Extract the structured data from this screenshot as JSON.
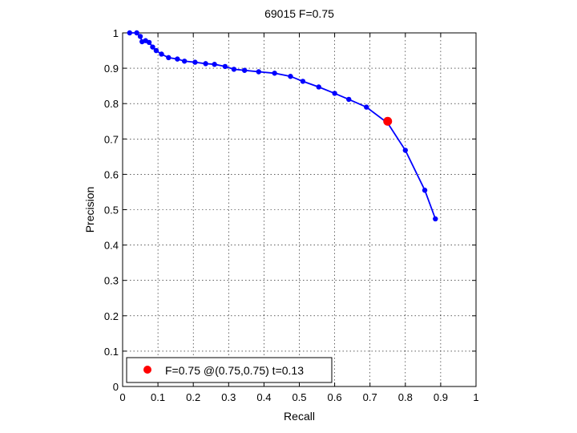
{
  "chart_data": {
    "type": "line",
    "title": "69015 F=0.75",
    "xlabel": "Recall",
    "ylabel": "Precision",
    "xlim": [
      0,
      1
    ],
    "ylim": [
      0,
      1
    ],
    "grid": true,
    "xticks": [
      "0",
      "0.1",
      "0.2",
      "0.3",
      "0.4",
      "0.5",
      "0.6",
      "0.7",
      "0.8",
      "0.9",
      "1"
    ],
    "yticks": [
      "0",
      "0.1",
      "0.2",
      "0.3",
      "0.4",
      "0.5",
      "0.6",
      "0.7",
      "0.8",
      "0.9",
      "1"
    ],
    "series": [
      {
        "color": "#0000ff",
        "x": [
          0.02,
          0.04,
          0.05,
          0.055,
          0.065,
          0.075,
          0.085,
          0.095,
          0.11,
          0.13,
          0.155,
          0.175,
          0.205,
          0.235,
          0.26,
          0.29,
          0.315,
          0.345,
          0.385,
          0.43,
          0.475,
          0.51,
          0.555,
          0.6,
          0.64,
          0.69,
          0.75,
          0.8,
          0.855,
          0.885
        ],
        "y": [
          1.0,
          1.0,
          0.99,
          0.975,
          0.978,
          0.973,
          0.96,
          0.95,
          0.94,
          0.93,
          0.926,
          0.92,
          0.917,
          0.913,
          0.911,
          0.905,
          0.897,
          0.894,
          0.89,
          0.886,
          0.877,
          0.863,
          0.847,
          0.829,
          0.812,
          0.79,
          0.745,
          0.668,
          0.555,
          0.474
        ]
      }
    ],
    "highlight": {
      "x": 0.75,
      "y": 0.75,
      "color": "#ff0000"
    },
    "legend": {
      "position": "bottom-left",
      "label": "F=0.75 @(0.75,0.75) t=0.13"
    }
  }
}
